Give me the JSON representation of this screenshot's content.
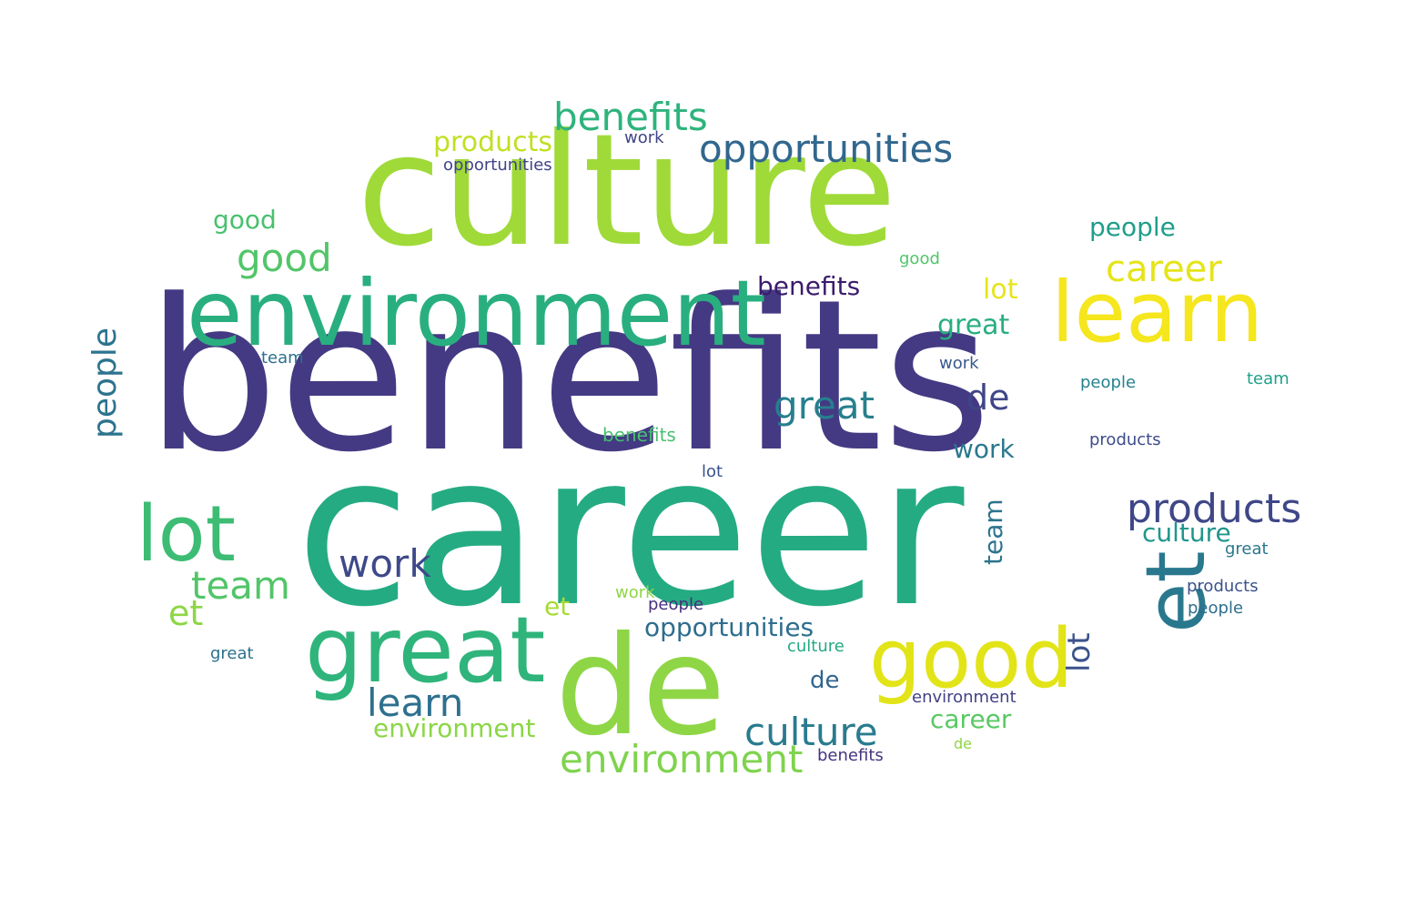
{
  "colors": {
    "background": "#ffffff",
    "palette": [
      "#440154",
      "#472c7a",
      "#3b518b",
      "#2c718e",
      "#21908d",
      "#27ad81",
      "#5cc863",
      "#aadc32",
      "#fde725"
    ]
  },
  "words": [
    {
      "text": "benefits",
      "color": "#443a83"
    },
    {
      "text": "career",
      "color": "#25ab82"
    },
    {
      "text": "culture",
      "color": "#a0da39"
    },
    {
      "text": "environment",
      "color": "#29af7f"
    },
    {
      "text": "learn",
      "color": "#f5e61e"
    },
    {
      "text": "de",
      "color": "#8ed645"
    },
    {
      "text": "good",
      "color": "#e2e418"
    },
    {
      "text": "great",
      "color": "#2fb47c"
    },
    {
      "text": "et",
      "color": "#2a788e"
    },
    {
      "text": "lot",
      "color": "#3dbc74"
    },
    {
      "text": "benefits",
      "color": "#2eb37c"
    },
    {
      "text": "opportunities",
      "color": "#31678e"
    },
    {
      "text": "products",
      "color": "#c2df23"
    },
    {
      "text": "career",
      "color": "#e5e419"
    },
    {
      "text": "good",
      "color": "#52c569"
    },
    {
      "text": "people",
      "color": "#2c738e"
    },
    {
      "text": "team",
      "color": "#52c569"
    },
    {
      "text": "work",
      "color": "#3e4989"
    },
    {
      "text": "learn",
      "color": "#2d708e"
    },
    {
      "text": "great",
      "color": "#277f8e"
    },
    {
      "text": "de",
      "color": "#404688"
    },
    {
      "text": "products",
      "color": "#3f4788"
    },
    {
      "text": "culture",
      "color": "#297b8e"
    },
    {
      "text": "environment",
      "color": "#7fd34e"
    },
    {
      "text": "environment",
      "color": "#8bd646"
    },
    {
      "text": "opportunities",
      "color": "#2e6d8e"
    },
    {
      "text": "culture",
      "color": "#1f978b"
    },
    {
      "text": "career",
      "color": "#5ac864"
    },
    {
      "text": "benefits",
      "color": "#3b1c6d"
    },
    {
      "text": "lot",
      "color": "#3b528b"
    },
    {
      "text": "et",
      "color": "#8ed645"
    },
    {
      "text": "lot",
      "color": "#e7e419"
    },
    {
      "text": "team",
      "color": "#2b748e"
    },
    {
      "text": "et",
      "color": "#a8db34"
    },
    {
      "text": "good",
      "color": "#48c16e"
    },
    {
      "text": "great",
      "color": "#28ae80"
    },
    {
      "text": "opportunities",
      "color": "#404387"
    },
    {
      "text": "people",
      "color": "#1f9e89"
    },
    {
      "text": "people",
      "color": "#26818e"
    },
    {
      "text": "work",
      "color": "#2a788e"
    },
    {
      "text": "benefits",
      "color": "#47c06f"
    },
    {
      "text": "products",
      "color": "#3e4c8a"
    },
    {
      "text": "great",
      "color": "#2c728e"
    },
    {
      "text": "de",
      "color": "#32658e"
    },
    {
      "text": "environment",
      "color": "#424186"
    },
    {
      "text": "benefits",
      "color": "#463480"
    },
    {
      "text": "team",
      "color": "#2d708e"
    },
    {
      "text": "lot",
      "color": "#3a538b"
    },
    {
      "text": "culture",
      "color": "#24aa83"
    },
    {
      "text": "good",
      "color": "#52c569"
    },
    {
      "text": "great",
      "color": "#2a778e"
    },
    {
      "text": "de",
      "color": "#8ed645"
    },
    {
      "text": "team",
      "color": "#1fa188"
    },
    {
      "text": "work",
      "color": "#38598c"
    },
    {
      "text": "work",
      "color": "#8ed645"
    },
    {
      "text": "work",
      "color": "#404588"
    },
    {
      "text": "products",
      "color": "#3b528b"
    },
    {
      "text": "people",
      "color": "#2e6e8e"
    },
    {
      "text": "people",
      "color": "#46307e"
    }
  ]
}
